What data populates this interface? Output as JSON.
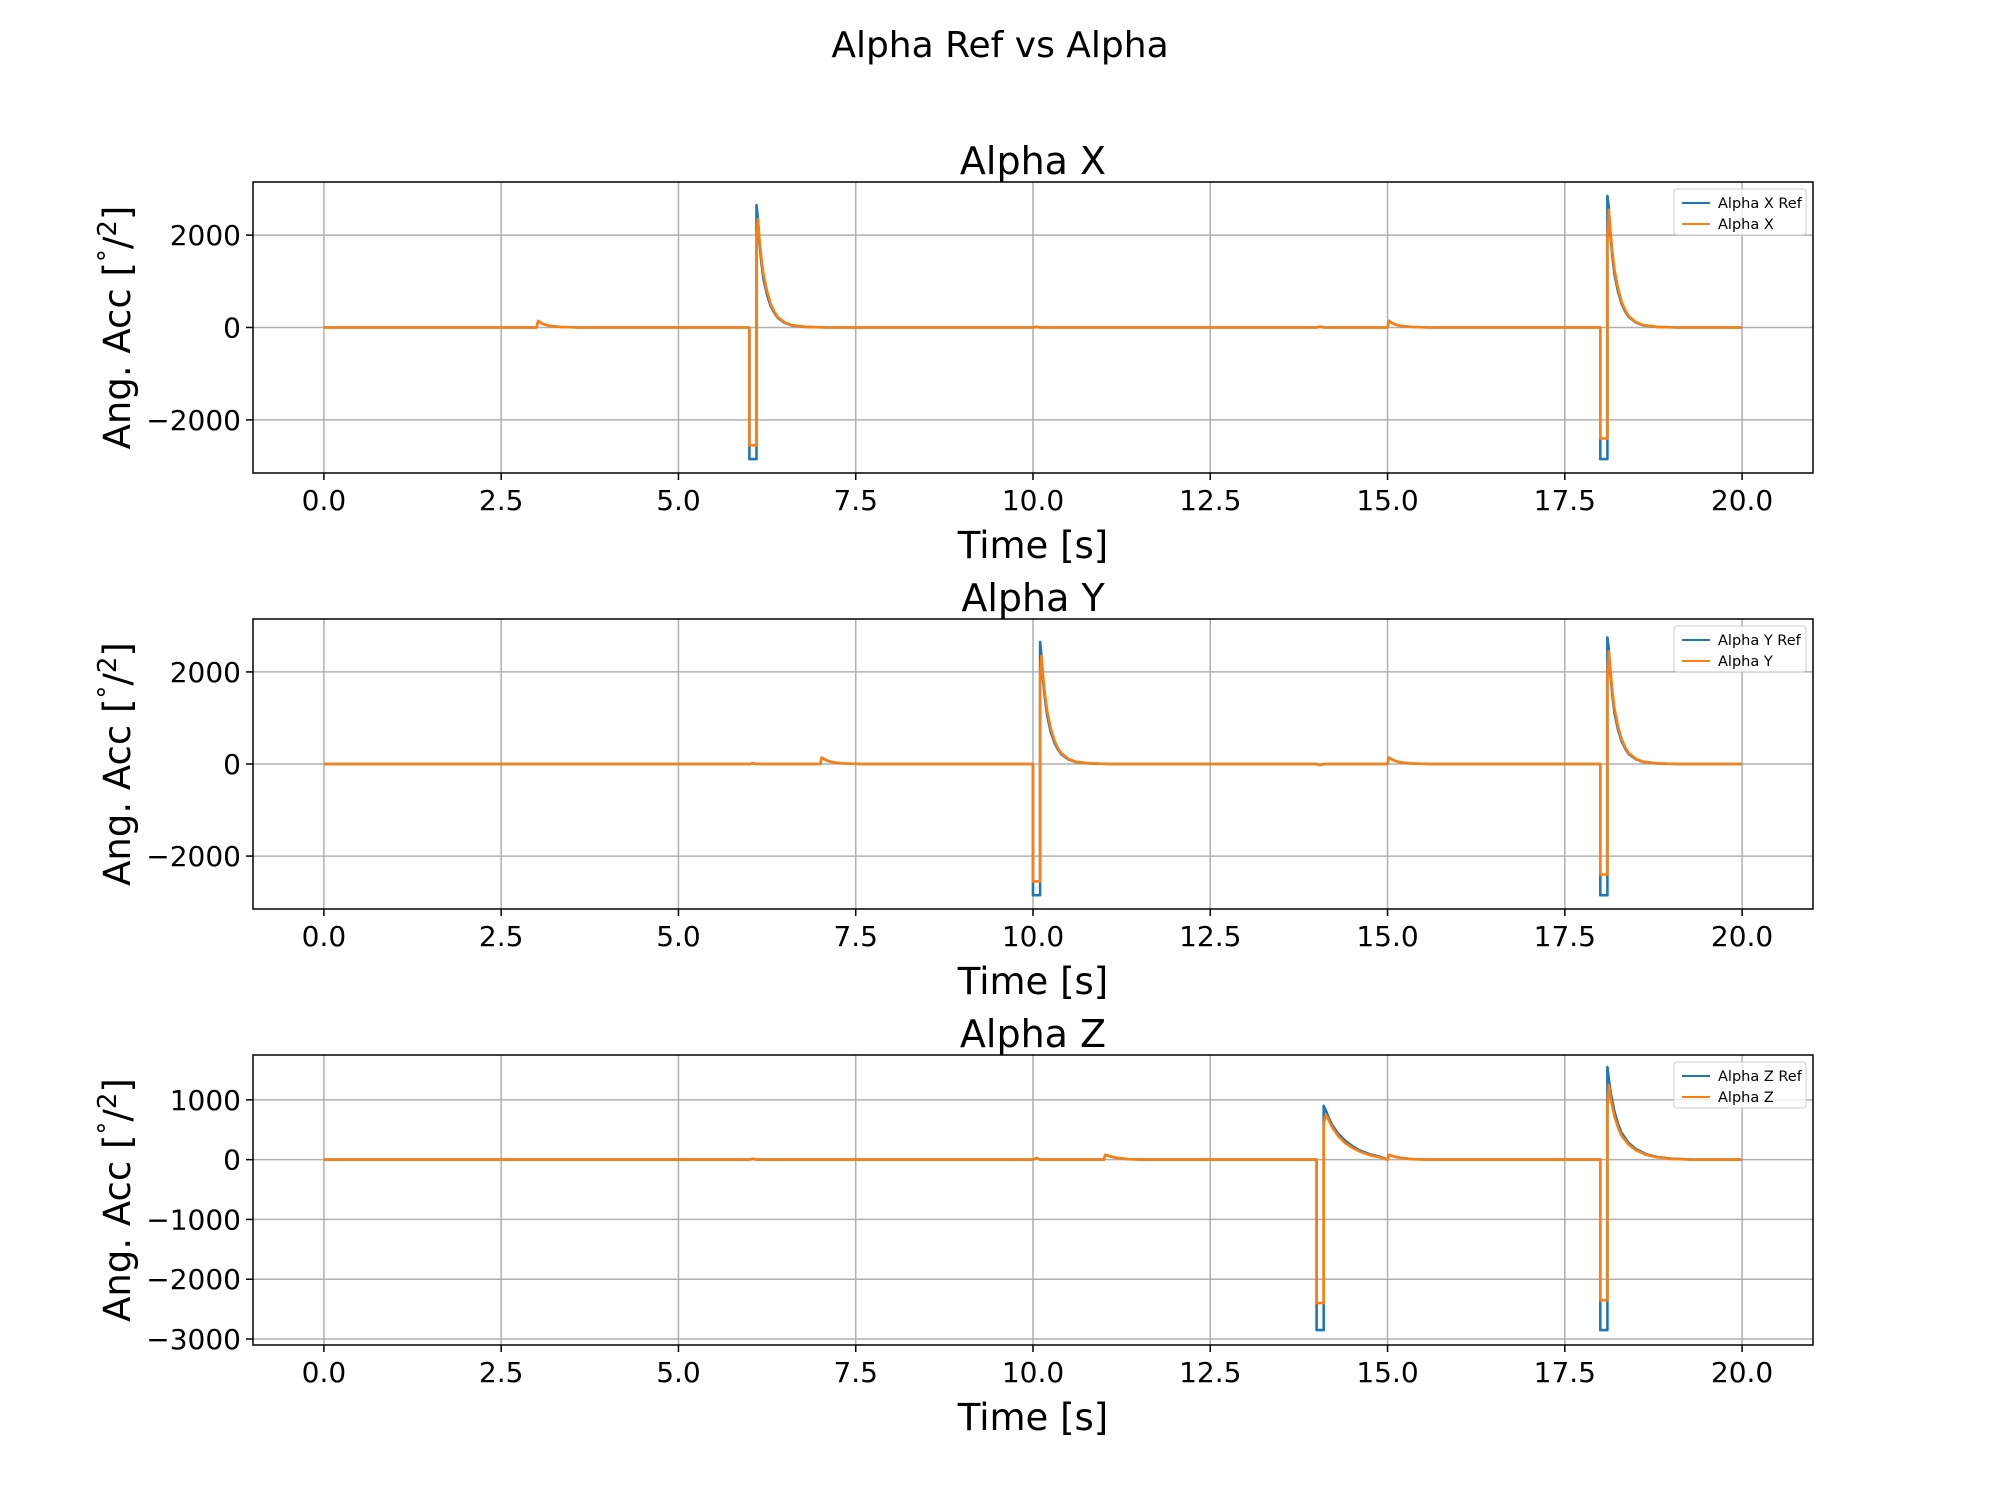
{
  "figure": {
    "suptitle": "Alpha Ref vs Alpha"
  },
  "colors": {
    "ref": "#1f77b4",
    "actual": "#ff7f0e",
    "grid": "#b0b0b0"
  },
  "chart_data": [
    {
      "type": "line",
      "title": "Alpha X",
      "xlabel": "Time [s]",
      "ylabel": "Ang. Acc [$^\\circ/^2$]",
      "xlim": [
        -1.0,
        21.0
      ],
      "ylim": [
        -3150,
        3150
      ],
      "xticks": [
        0.0,
        2.5,
        5.0,
        7.5,
        10.0,
        12.5,
        15.0,
        17.5,
        20.0
      ],
      "xtick_labels": [
        "0.0",
        "2.5",
        "5.0",
        "7.5",
        "10.0",
        "12.5",
        "15.0",
        "17.5",
        "20.0"
      ],
      "yticks": [
        2000,
        0,
        -2000
      ],
      "ytick_labels": [
        "2000",
        "0",
        "−2000"
      ],
      "grid": true,
      "legend": "upper right",
      "series": [
        {
          "name": "Alpha X Ref",
          "color": "#1f77b4",
          "x": [
            0,
            3.0,
            3.02,
            3.05,
            3.1,
            3.2,
            3.35,
            3.6,
            6.0,
            6.0,
            6.1,
            6.1,
            6.12,
            6.14,
            6.17,
            6.2,
            6.25,
            6.3,
            6.35,
            6.4,
            6.5,
            6.6,
            6.8,
            7.1,
            10.0,
            10.05,
            10.1,
            14.0,
            14.05,
            14.1,
            15.0,
            15.02,
            15.05,
            15.1,
            15.2,
            15.35,
            15.6,
            18.0,
            18.0,
            18.1,
            18.1,
            18.12,
            18.14,
            18.17,
            18.2,
            18.25,
            18.3,
            18.35,
            18.4,
            18.5,
            18.6,
            18.8,
            19.1,
            20.0
          ],
          "values": [
            0,
            0,
            140,
            110,
            70,
            30,
            10,
            0,
            0,
            -2850,
            -2850,
            2650,
            2350,
            1850,
            1400,
            1050,
            700,
            470,
            320,
            210,
            100,
            45,
            12,
            0,
            0,
            15,
            0,
            0,
            20,
            0,
            0,
            140,
            110,
            70,
            30,
            10,
            0,
            0,
            -2850,
            -2850,
            2850,
            2600,
            2050,
            1550,
            1150,
            780,
            520,
            350,
            230,
            110,
            50,
            12,
            0,
            0
          ]
        },
        {
          "name": "Alpha X",
          "color": "#ff7f0e",
          "x": [
            0,
            3.0,
            3.02,
            3.05,
            3.1,
            3.2,
            3.35,
            3.6,
            6.0,
            6.0,
            6.1,
            6.1,
            6.12,
            6.14,
            6.17,
            6.2,
            6.25,
            6.3,
            6.35,
            6.4,
            6.5,
            6.6,
            6.8,
            7.1,
            10.0,
            10.05,
            10.1,
            14.0,
            14.05,
            14.1,
            15.0,
            15.02,
            15.05,
            15.1,
            15.2,
            15.35,
            15.6,
            18.0,
            18.0,
            18.1,
            18.1,
            18.12,
            18.14,
            18.17,
            18.2,
            18.25,
            18.3,
            18.35,
            18.4,
            18.5,
            18.6,
            18.8,
            19.1,
            20.0
          ],
          "values": [
            0,
            0,
            140,
            110,
            70,
            30,
            10,
            0,
            0,
            -2550,
            -2550,
            1900,
            2350,
            1950,
            1500,
            1150,
            780,
            520,
            350,
            230,
            110,
            50,
            14,
            0,
            0,
            15,
            0,
            0,
            20,
            0,
            0,
            140,
            110,
            70,
            30,
            10,
            0,
            0,
            -2400,
            -2400,
            1900,
            2550,
            2150,
            1650,
            1250,
            850,
            560,
            380,
            250,
            120,
            55,
            14,
            0,
            0
          ]
        }
      ]
    },
    {
      "type": "line",
      "title": "Alpha Y",
      "xlabel": "Time [s]",
      "ylabel": "Ang. Acc [$^\\circ/^2$]",
      "xlim": [
        -1.0,
        21.0
      ],
      "ylim": [
        -3150,
        3150
      ],
      "xticks": [
        0.0,
        2.5,
        5.0,
        7.5,
        10.0,
        12.5,
        15.0,
        17.5,
        20.0
      ],
      "xtick_labels": [
        "0.0",
        "2.5",
        "5.0",
        "7.5",
        "10.0",
        "12.5",
        "15.0",
        "17.5",
        "20.0"
      ],
      "yticks": [
        2000,
        0,
        -2000
      ],
      "ytick_labels": [
        "2000",
        "0",
        "−2000"
      ],
      "grid": true,
      "legend": "upper right",
      "series": [
        {
          "name": "Alpha Y Ref",
          "color": "#1f77b4",
          "x": [
            0,
            6.0,
            6.05,
            6.1,
            7.0,
            7.02,
            7.05,
            7.1,
            7.2,
            7.35,
            7.6,
            10.0,
            10.0,
            10.1,
            10.1,
            10.12,
            10.14,
            10.17,
            10.2,
            10.25,
            10.3,
            10.35,
            10.4,
            10.5,
            10.6,
            10.8,
            11.1,
            14.0,
            14.05,
            14.1,
            15.0,
            15.02,
            15.05,
            15.1,
            15.2,
            15.35,
            15.6,
            18.0,
            18.0,
            18.1,
            18.1,
            18.12,
            18.14,
            18.17,
            18.2,
            18.25,
            18.3,
            18.35,
            18.4,
            18.5,
            18.6,
            18.8,
            19.1,
            20.0
          ],
          "values": [
            0,
            0,
            15,
            0,
            0,
            140,
            110,
            70,
            30,
            10,
            0,
            0,
            -2850,
            -2850,
            2650,
            2350,
            1850,
            1400,
            1050,
            700,
            470,
            320,
            210,
            100,
            45,
            12,
            0,
            0,
            -25,
            0,
            0,
            140,
            110,
            70,
            30,
            10,
            0,
            0,
            -2850,
            -2850,
            2750,
            2500,
            2000,
            1500,
            1100,
            750,
            500,
            340,
            220,
            105,
            48,
            12,
            0,
            0
          ]
        },
        {
          "name": "Alpha Y",
          "color": "#ff7f0e",
          "x": [
            0,
            6.0,
            6.05,
            6.1,
            7.0,
            7.02,
            7.05,
            7.1,
            7.2,
            7.35,
            7.6,
            10.0,
            10.0,
            10.1,
            10.1,
            10.12,
            10.14,
            10.17,
            10.2,
            10.25,
            10.3,
            10.35,
            10.4,
            10.5,
            10.6,
            10.8,
            11.1,
            14.0,
            14.05,
            14.1,
            15.0,
            15.02,
            15.05,
            15.1,
            15.2,
            15.35,
            15.6,
            18.0,
            18.0,
            18.1,
            18.1,
            18.12,
            18.14,
            18.17,
            18.2,
            18.25,
            18.3,
            18.35,
            18.4,
            18.5,
            18.6,
            18.8,
            19.1,
            20.0
          ],
          "values": [
            0,
            0,
            15,
            0,
            0,
            140,
            110,
            70,
            30,
            10,
            0,
            0,
            -2550,
            -2550,
            1900,
            2350,
            1950,
            1500,
            1150,
            780,
            520,
            350,
            230,
            110,
            50,
            14,
            0,
            0,
            -25,
            0,
            0,
            140,
            110,
            70,
            30,
            10,
            0,
            0,
            -2400,
            -2400,
            1900,
            2450,
            2100,
            1600,
            1200,
            820,
            550,
            370,
            240,
            115,
            52,
            14,
            0,
            0
          ]
        }
      ]
    },
    {
      "type": "line",
      "title": "Alpha Z",
      "xlabel": "Time [s]",
      "ylabel": "Ang. Acc [$^\\circ/^2$]",
      "xlim": [
        -1.0,
        21.0
      ],
      "ylim": [
        -3100,
        1750
      ],
      "xticks": [
        0.0,
        2.5,
        5.0,
        7.5,
        10.0,
        12.5,
        15.0,
        17.5,
        20.0
      ],
      "xtick_labels": [
        "0.0",
        "2.5",
        "5.0",
        "7.5",
        "10.0",
        "12.5",
        "15.0",
        "17.5",
        "20.0"
      ],
      "yticks": [
        1000,
        0,
        -1000,
        -2000,
        -3000
      ],
      "ytick_labels": [
        "1000",
        "0",
        "−1000",
        "−2000",
        "−3000"
      ],
      "grid": true,
      "legend": "upper right",
      "series": [
        {
          "name": "Alpha Z Ref",
          "color": "#1f77b4",
          "x": [
            0,
            6.0,
            6.05,
            6.1,
            10.0,
            10.05,
            10.1,
            11.0,
            11.02,
            11.05,
            11.1,
            11.2,
            11.35,
            11.6,
            14.0,
            14.0,
            14.1,
            14.1,
            14.13,
            14.17,
            14.22,
            14.3,
            14.4,
            14.5,
            14.6,
            14.75,
            14.9,
            15.0,
            15.02,
            15.05,
            15.1,
            15.2,
            15.35,
            15.6,
            18.0,
            18.0,
            18.1,
            18.1,
            18.12,
            18.15,
            18.2,
            18.25,
            18.3,
            18.4,
            18.5,
            18.65,
            18.8,
            19.0,
            19.3,
            20.0
          ],
          "values": [
            0,
            0,
            15,
            0,
            0,
            25,
            0,
            0,
            80,
            70,
            50,
            25,
            8,
            0,
            0,
            -2850,
            -2850,
            900,
            820,
            700,
            580,
            440,
            320,
            230,
            160,
            90,
            45,
            0,
            80,
            70,
            50,
            25,
            8,
            0,
            0,
            -2850,
            -2850,
            1550,
            1350,
            1100,
            800,
            600,
            450,
            280,
            180,
            90,
            45,
            15,
            0,
            0
          ]
        },
        {
          "name": "Alpha Z",
          "color": "#ff7f0e",
          "x": [
            0,
            6.0,
            6.05,
            6.1,
            10.0,
            10.05,
            10.1,
            11.0,
            11.02,
            11.05,
            11.1,
            11.2,
            11.35,
            11.6,
            14.0,
            14.0,
            14.1,
            14.1,
            14.13,
            14.17,
            14.22,
            14.3,
            14.4,
            14.5,
            14.6,
            14.75,
            14.9,
            15.0,
            15.02,
            15.05,
            15.1,
            15.2,
            15.35,
            15.6,
            18.0,
            18.0,
            18.1,
            18.1,
            18.12,
            18.15,
            18.2,
            18.25,
            18.3,
            18.4,
            18.5,
            18.65,
            18.8,
            19.0,
            19.3,
            20.0
          ],
          "values": [
            0,
            0,
            15,
            0,
            0,
            25,
            0,
            0,
            80,
            70,
            50,
            25,
            8,
            0,
            0,
            -2400,
            -2400,
            600,
            750,
            660,
            540,
            400,
            280,
            200,
            140,
            75,
            35,
            0,
            80,
            70,
            50,
            25,
            8,
            0,
            0,
            -2350,
            -2350,
            900,
            1250,
            1000,
            720,
            540,
            400,
            250,
            160,
            80,
            40,
            12,
            0,
            0
          ]
        }
      ]
    }
  ]
}
